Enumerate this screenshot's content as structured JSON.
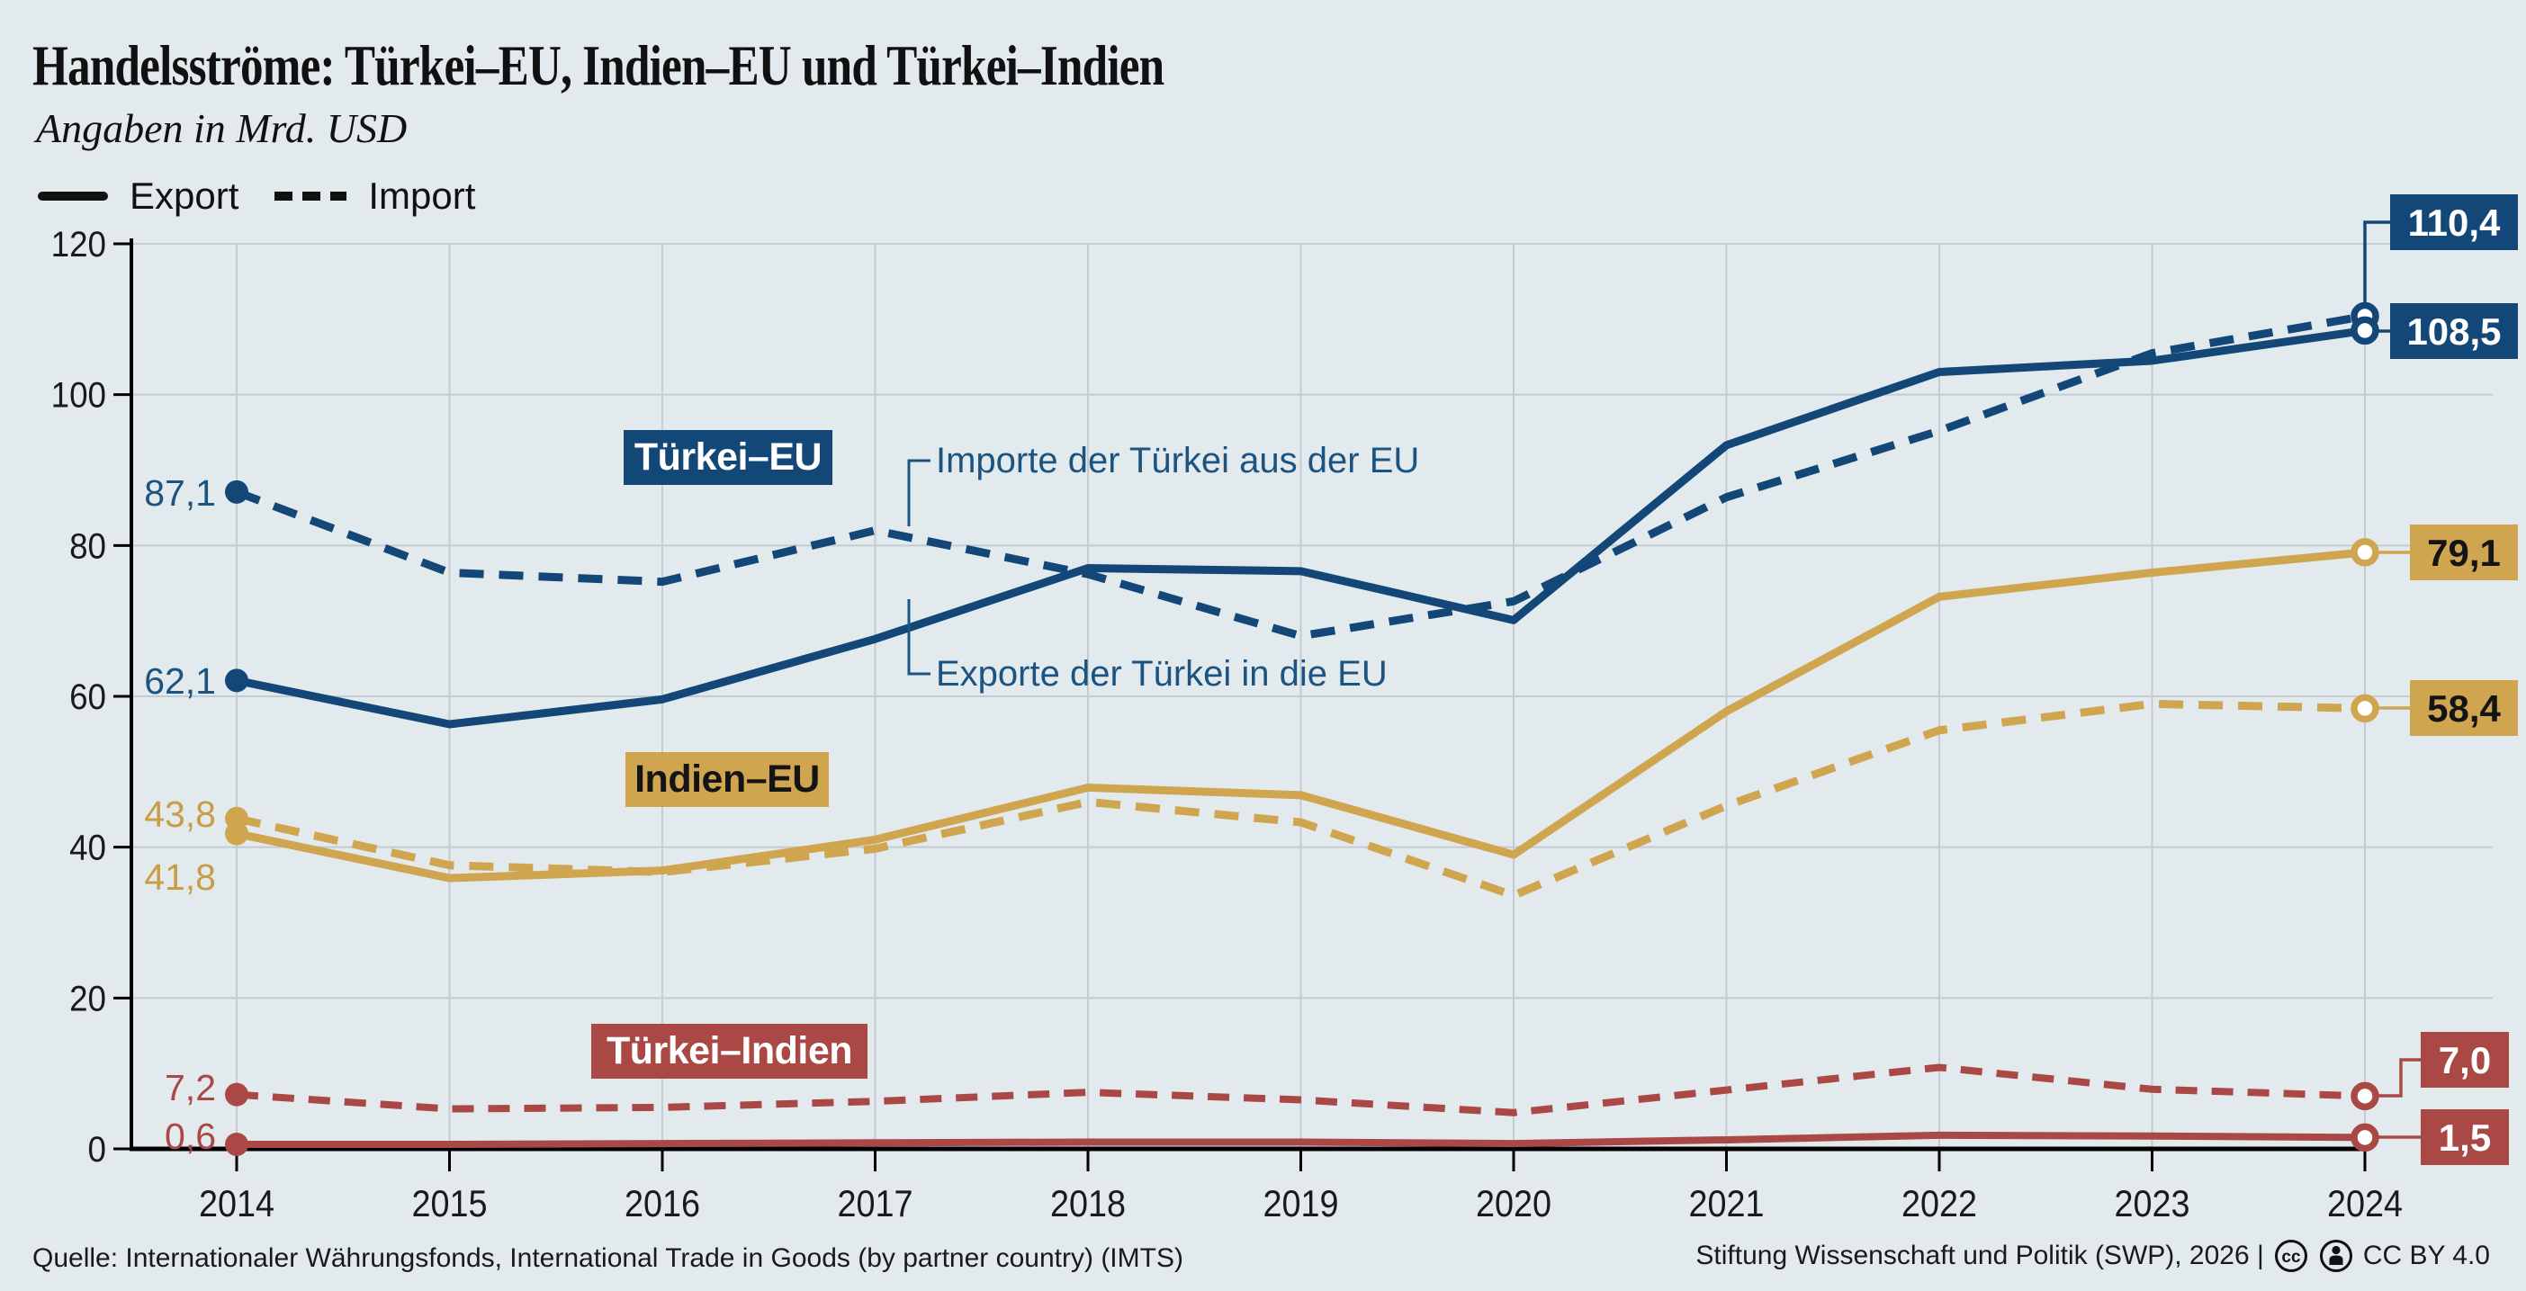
{
  "header": {
    "title": "Handelsströme: Türkei–EU, Indien–EU und Türkei–Indien",
    "subtitle": "Angaben in Mrd. USD"
  },
  "legend": {
    "export_label": "Export",
    "import_label": "Import"
  },
  "series_labels": {
    "turkei_eu": "Türkei–EU",
    "indien_eu": "Indien–EU",
    "turkei_indien": "Türkei–Indien"
  },
  "annotations": {
    "import_line": "Importe der Türkei aus der EU",
    "export_line": "Exporte der Türkei in die EU"
  },
  "colors": {
    "background": "#e3eaee",
    "grid": "#c5ccd1",
    "axis": "#000000",
    "turkei_eu": "#134777",
    "indien_eu": "#d0a550",
    "turkei_indien": "#aa4845",
    "annotation_text": "#1b5381"
  },
  "chart_data": {
    "type": "line",
    "title": "Handelsströme: Türkei–EU, Indien–EU und Türkei–Indien",
    "ylabel": "Angaben in Mrd. USD",
    "xlabel": "",
    "grid": true,
    "legend_position": "top-left",
    "ylim": [
      0,
      120
    ],
    "yticks": [
      0,
      20,
      40,
      60,
      80,
      100,
      120
    ],
    "x": [
      2014,
      2015,
      2016,
      2017,
      2018,
      2019,
      2020,
      2021,
      2022,
      2023,
      2024
    ],
    "series": [
      {
        "id": "indien_eu_import",
        "group_id": "indien_eu",
        "name": "Indien–EU Import",
        "group": "Indien–EU",
        "flow": "Import",
        "style": "dashed",
        "color": "#d0a550",
        "label_color": "#c79e43",
        "values": [
          43.8,
          37.6,
          36.7,
          39.8,
          46.0,
          43.3,
          33.6,
          45.5,
          55.5,
          59.0,
          58.4
        ],
        "start_label": "43,8",
        "end_label": "58,4"
      },
      {
        "id": "indien_eu_export",
        "group_id": "indien_eu",
        "name": "Indien–EU Export",
        "group": "Indien–EU",
        "flow": "Export",
        "style": "solid",
        "color": "#d0a550",
        "label_color": "#c79e43",
        "values": [
          41.8,
          35.9,
          36.9,
          41.0,
          47.9,
          46.9,
          39.0,
          58.0,
          73.2,
          76.4,
          79.1
        ],
        "start_label": "41,8",
        "end_label": "79,1"
      },
      {
        "id": "turkei_indien_import",
        "group_id": "turkei_indien",
        "name": "Türkei–Indien Import",
        "group": "Türkei–Indien",
        "flow": "Import",
        "style": "dashed",
        "color": "#aa4845",
        "label_color": "#aa4845",
        "values": [
          7.2,
          5.3,
          5.5,
          6.3,
          7.5,
          6.5,
          4.8,
          7.8,
          10.8,
          7.9,
          7.0
        ],
        "start_label": "7,2",
        "end_label": "7,0"
      },
      {
        "id": "turkei_indien_export",
        "group_id": "turkei_indien",
        "name": "Türkei–Indien Export",
        "group": "Türkei–Indien",
        "flow": "Export",
        "style": "solid",
        "color": "#aa4845",
        "label_color": "#aa4845",
        "values": [
          0.6,
          0.6,
          0.7,
          0.8,
          0.9,
          0.9,
          0.7,
          1.2,
          1.8,
          1.7,
          1.5
        ],
        "start_label": "0,6",
        "end_label": "1,5"
      },
      {
        "id": "turkei_eu_import",
        "group_id": "turkei_eu",
        "name": "Türkei–EU Import",
        "group": "Türkei–EU",
        "flow": "Import",
        "style": "dashed",
        "color": "#134777",
        "label_color": "#1b5381",
        "values": [
          87.1,
          76.4,
          75.2,
          82.0,
          76.2,
          68.0,
          72.6,
          86.4,
          95.2,
          105.5,
          110.4
        ],
        "start_label": "87,1",
        "end_label": "110,4"
      },
      {
        "id": "turkei_eu_export",
        "group_id": "turkei_eu",
        "name": "Türkei–EU Export",
        "group": "Türkei–EU",
        "flow": "Export",
        "style": "solid",
        "color": "#134777",
        "label_color": "#1b5381",
        "values": [
          62.1,
          56.3,
          59.6,
          67.6,
          77.0,
          76.6,
          70.1,
          93.3,
          103.0,
          104.5,
          108.5
        ],
        "start_label": "62,1",
        "end_label": "108,5"
      }
    ]
  },
  "footer": {
    "source": "Quelle: Internationaler Währungsfonds, International Trade in Goods (by partner country) (IMTS)",
    "credit": "Stiftung Wissenschaft und Politik (SWP), 2026 |",
    "license": "CC BY 4.0"
  }
}
